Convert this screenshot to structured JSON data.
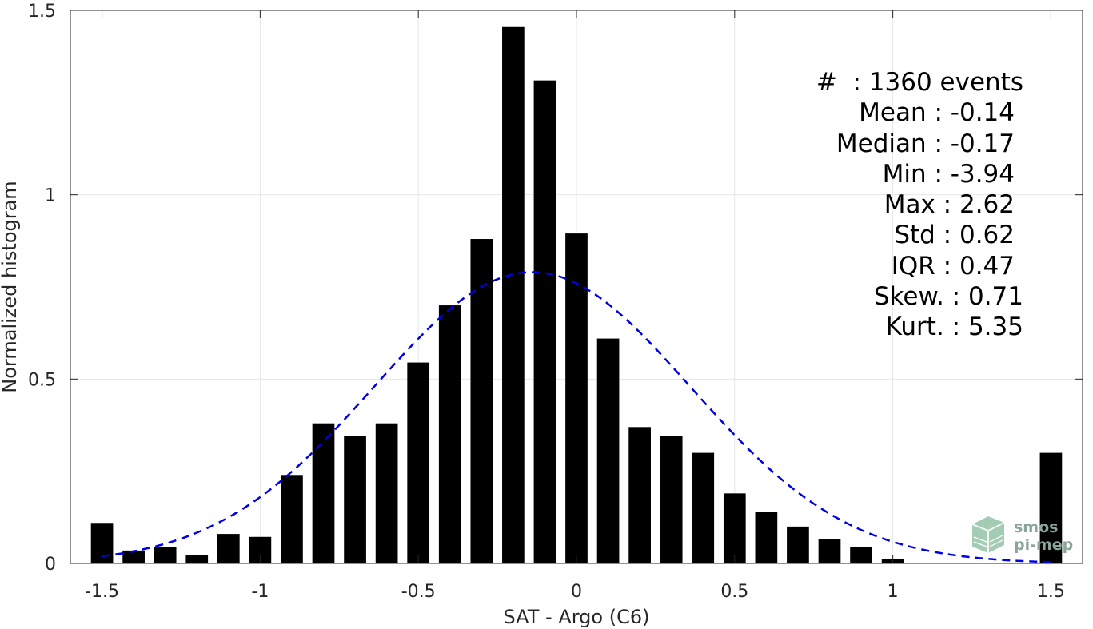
{
  "chart_data": {
    "type": "bar",
    "xlabel": "SAT - Argo (C6)",
    "ylabel": "Normalized histogram",
    "xlim": [
      -1.6,
      1.6
    ],
    "ylim": [
      0,
      1.5
    ],
    "xticks": [
      -1.5,
      -1,
      -0.5,
      0,
      0.5,
      1,
      1.5
    ],
    "xtick_labels": [
      "-1.5",
      "-1",
      "-0.5",
      "0",
      "0.5",
      "1",
      "1.5"
    ],
    "yticks": [
      0,
      0.5,
      1,
      1.5
    ],
    "ytick_labels": [
      "0",
      "0.5",
      "1",
      "1.5"
    ],
    "grid": true,
    "bar_width": 0.07,
    "bar_color": "#000000",
    "x": [
      -1.5,
      -1.4,
      -1.3,
      -1.2,
      -1.1,
      -1.0,
      -0.9,
      -0.8,
      -0.7,
      -0.6,
      -0.5,
      -0.4,
      -0.3,
      -0.2,
      -0.1,
      0.0,
      0.1,
      0.2,
      0.3,
      0.4,
      0.5,
      0.6,
      0.7,
      0.8,
      0.9,
      1.0,
      1.1,
      1.2,
      1.3,
      1.4,
      1.5
    ],
    "values": [
      0.11,
      0.035,
      0.045,
      0.022,
      0.08,
      0.072,
      0.24,
      0.38,
      0.345,
      0.38,
      0.545,
      0.7,
      0.88,
      1.455,
      1.31,
      0.895,
      0.61,
      0.37,
      0.345,
      0.3,
      0.19,
      0.14,
      0.1,
      0.065,
      0.045,
      0.012,
      0,
      0,
      0,
      0,
      0.3
    ],
    "fit_curve": {
      "style": "dashed",
      "color": "#0000e6",
      "mean": -0.14,
      "std": 0.5,
      "peak": 0.79,
      "x_range": [
        -1.5,
        1.5
      ]
    },
    "stats": [
      {
        "label": "#  : 1360 events",
        "indent": false
      },
      {
        "label": "Mean : -0.14",
        "indent": true
      },
      {
        "label": "Median : -0.17",
        "indent": true
      },
      {
        "label": "Min : -3.94",
        "indent": true
      },
      {
        "label": "Max : 2.62",
        "indent": true
      },
      {
        "label": "Std : 0.62",
        "indent": true
      },
      {
        "label": "IQR : 0.47",
        "indent": true
      },
      {
        "label": "Skew. : 0.71",
        "indent": false
      },
      {
        "label": "Kurt. : 5.35",
        "indent": false
      }
    ]
  },
  "logo": {
    "line1": "smos",
    "line2": "pi-mep",
    "color": "#3d8a5e"
  }
}
